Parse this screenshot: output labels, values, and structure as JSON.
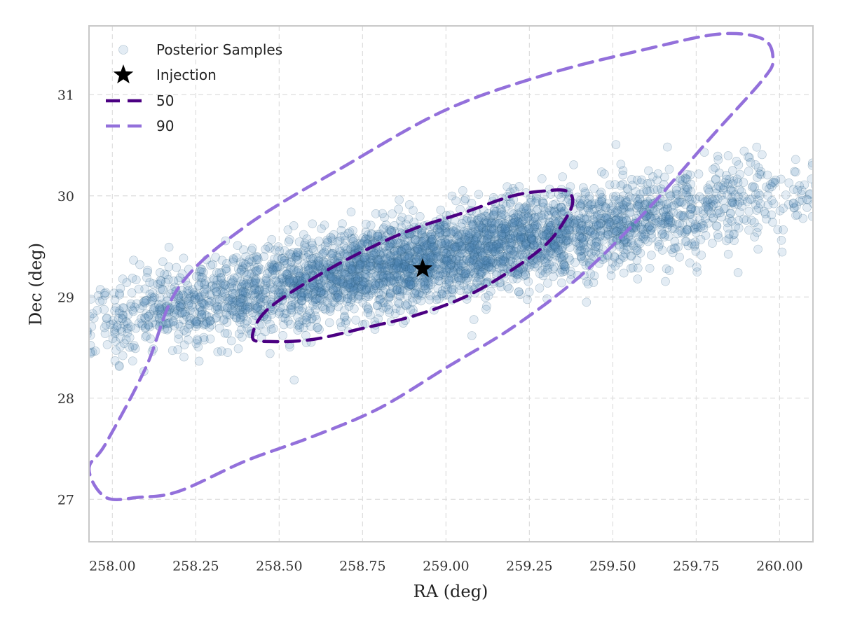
{
  "chart_data": {
    "type": "scatter",
    "title": "",
    "xlabel": "RA (deg)",
    "ylabel": "Dec (deg)",
    "xlim": [
      257.93,
      260.1
    ],
    "ylim": [
      26.58,
      31.68
    ],
    "xticks": [
      258.0,
      258.25,
      258.5,
      258.75,
      259.0,
      259.25,
      259.5,
      259.75,
      260.0
    ],
    "xtick_labels": [
      "258.00",
      "258.25",
      "258.50",
      "258.75",
      "259.00",
      "259.25",
      "259.50",
      "259.75",
      "260.00"
    ],
    "yticks": [
      27,
      28,
      29,
      30,
      31
    ],
    "ytick_labels": [
      "27",
      "28",
      "29",
      "30",
      "31"
    ],
    "grid": true,
    "legend_position": "top-left",
    "series": [
      {
        "name": "Posterior Samples",
        "kind": "scatter",
        "color": "#4f8ab8",
        "approx_count": 4000,
        "distribution": {
          "center": [
            258.96,
            29.38
          ],
          "major_axis_angle_deg": 34.5,
          "sigma_major_deg": 0.66,
          "sigma_minor_deg": 0.18
        }
      },
      {
        "name": "Injection",
        "kind": "marker",
        "marker": "star",
        "color": "#000000",
        "points": [
          [
            258.93,
            29.28
          ]
        ]
      },
      {
        "name": "50",
        "kind": "contour",
        "line": "dashed",
        "color": "#4b0082",
        "points": [
          [
            258.46,
            28.86
          ],
          [
            258.42,
            28.6
          ],
          [
            258.47,
            28.56
          ],
          [
            258.6,
            28.58
          ],
          [
            258.75,
            28.69
          ],
          [
            258.9,
            28.81
          ],
          [
            259.05,
            28.99
          ],
          [
            259.18,
            29.23
          ],
          [
            259.3,
            29.52
          ],
          [
            259.36,
            29.78
          ],
          [
            259.38,
            29.95
          ],
          [
            259.36,
            30.05
          ],
          [
            259.3,
            30.05
          ],
          [
            259.2,
            30.0
          ],
          [
            259.05,
            29.83
          ],
          [
            258.9,
            29.67
          ],
          [
            258.75,
            29.45
          ],
          [
            258.6,
            29.18
          ]
        ]
      },
      {
        "name": "90",
        "kind": "contour",
        "line": "dashed",
        "color": "#9370db",
        "points": [
          [
            258.1,
            28.3
          ],
          [
            257.98,
            27.55
          ],
          [
            257.93,
            27.3
          ],
          [
            257.98,
            27.02
          ],
          [
            258.08,
            27.02
          ],
          [
            258.2,
            27.08
          ],
          [
            258.4,
            27.38
          ],
          [
            258.6,
            27.62
          ],
          [
            258.8,
            27.9
          ],
          [
            259.0,
            28.3
          ],
          [
            259.2,
            28.7
          ],
          [
            259.4,
            29.2
          ],
          [
            259.6,
            29.85
          ],
          [
            259.8,
            30.6
          ],
          [
            259.95,
            31.15
          ],
          [
            259.98,
            31.35
          ],
          [
            259.95,
            31.55
          ],
          [
            259.82,
            31.6
          ],
          [
            259.6,
            31.45
          ],
          [
            259.3,
            31.2
          ],
          [
            259.0,
            30.85
          ],
          [
            258.7,
            30.3
          ],
          [
            258.4,
            29.7
          ],
          [
            258.2,
            29.1
          ]
        ]
      }
    ]
  }
}
